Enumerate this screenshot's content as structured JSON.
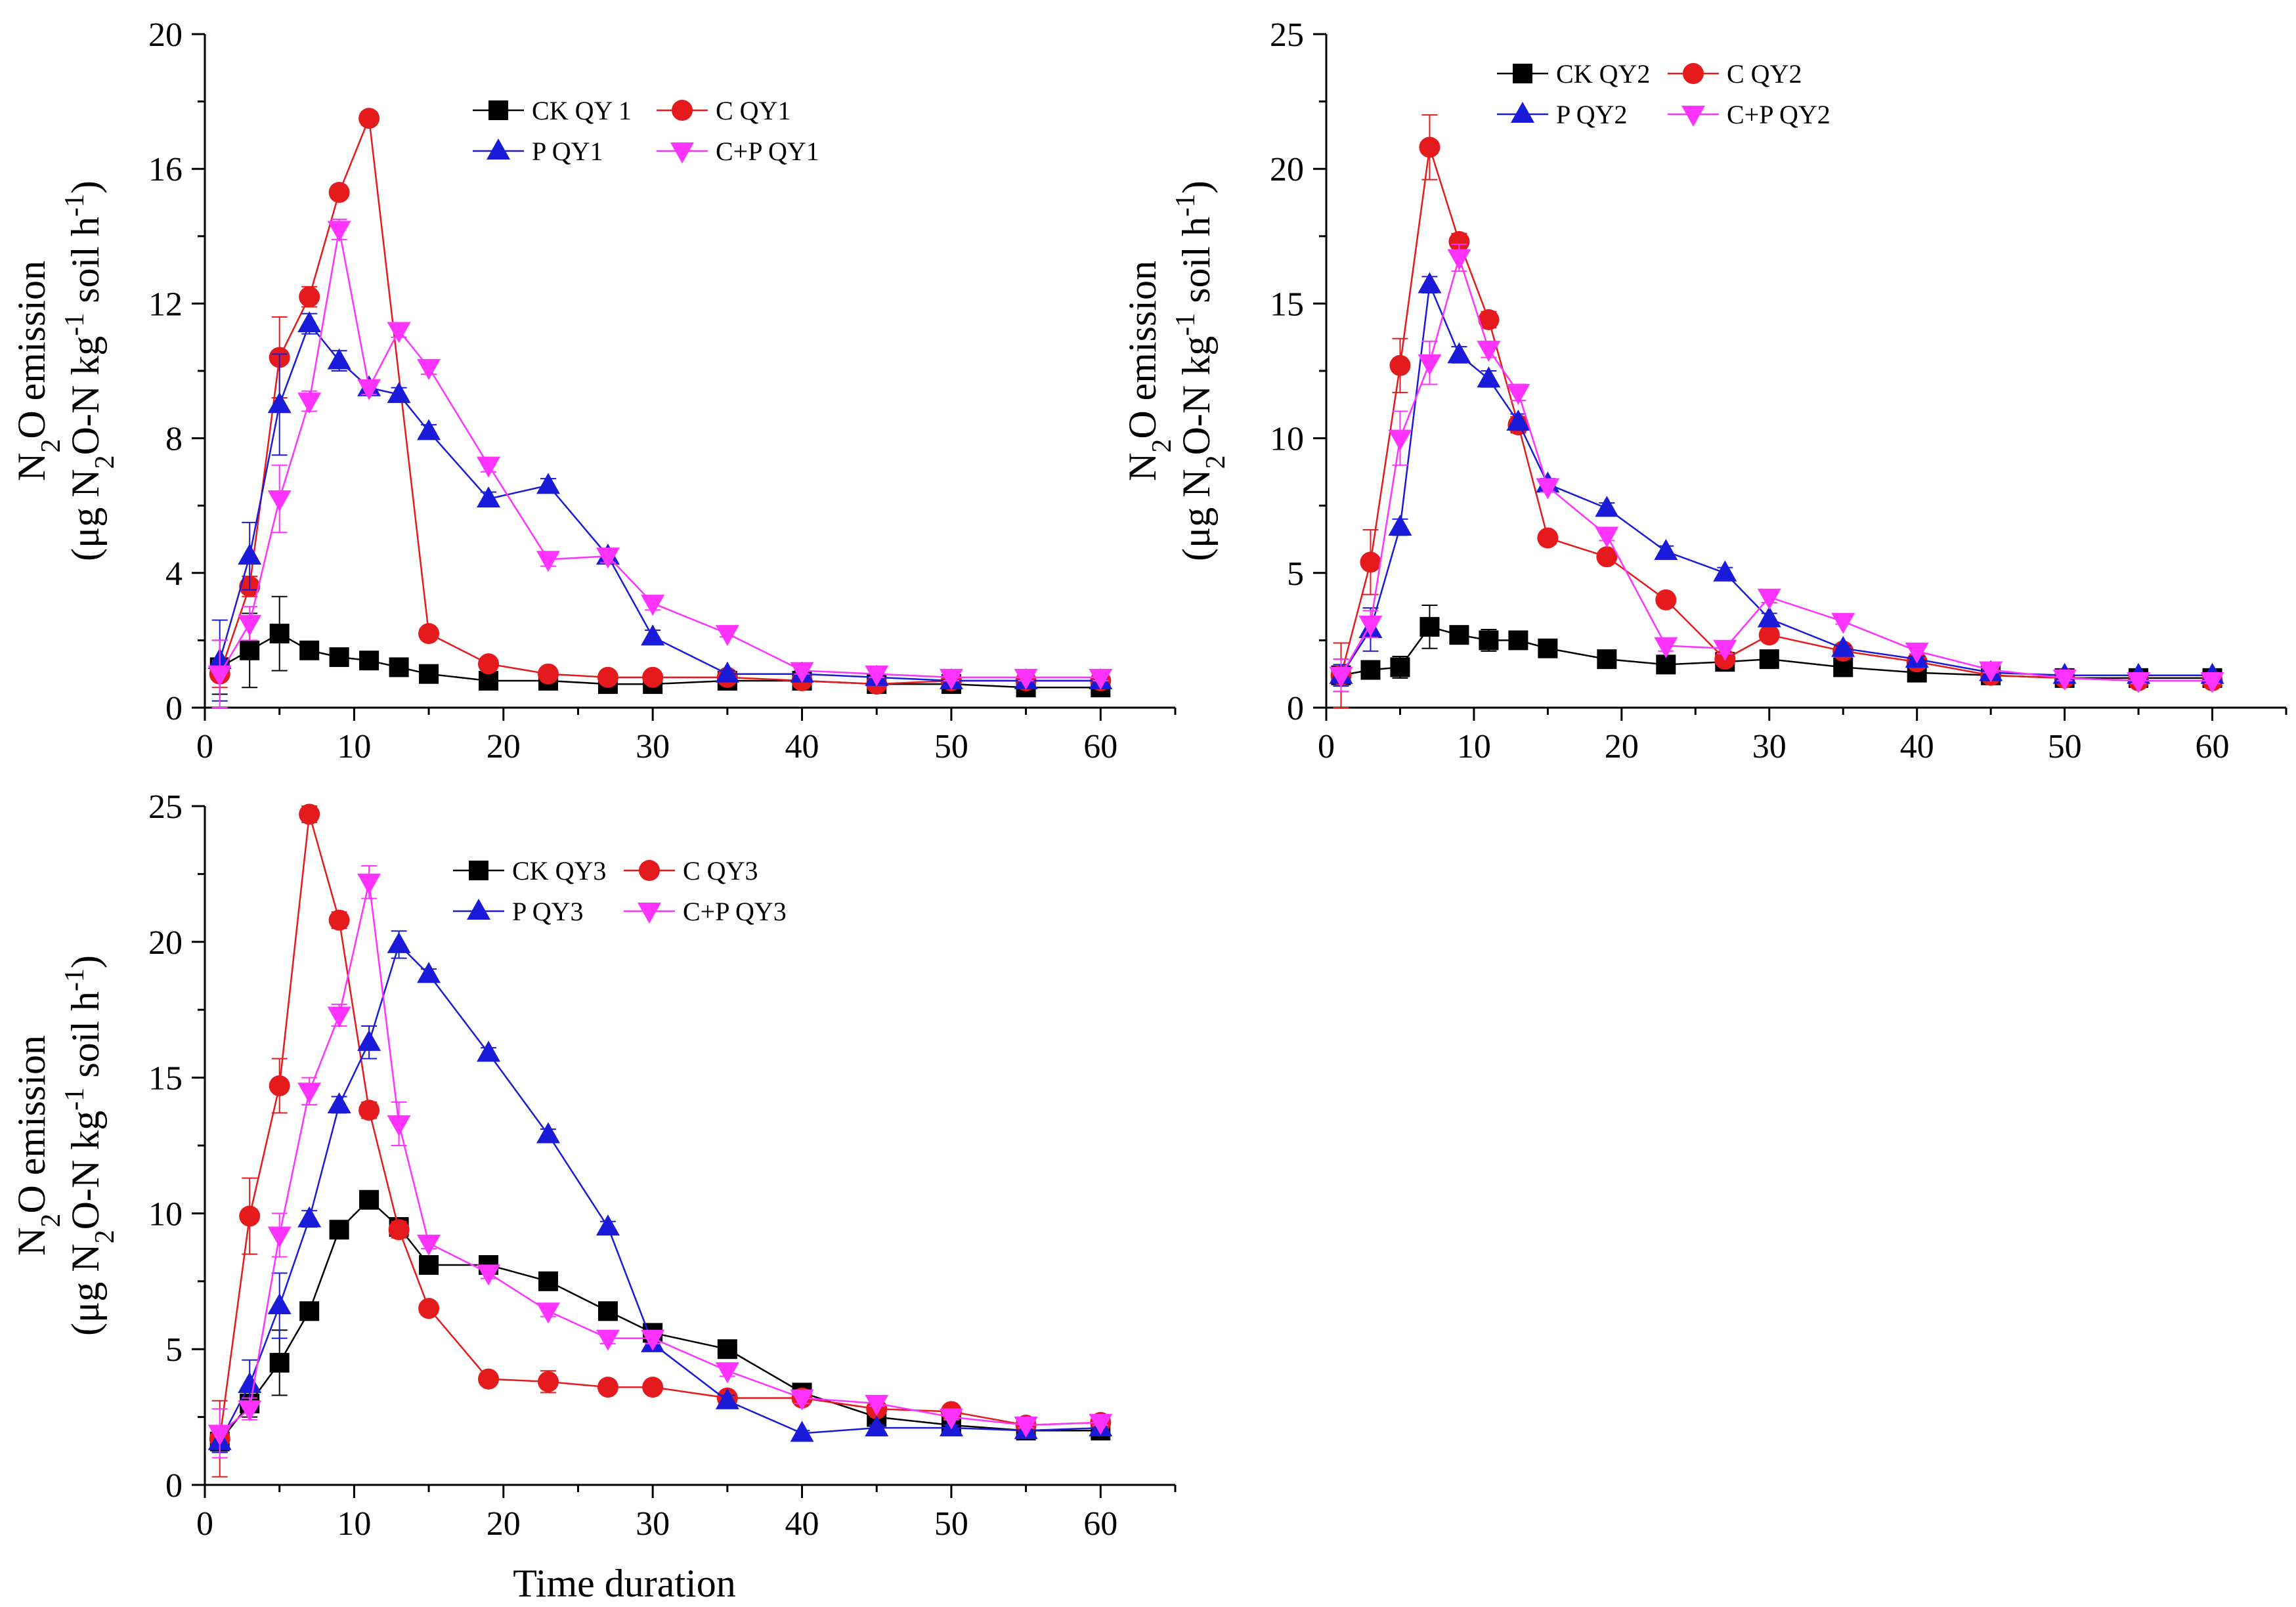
{
  "chart_data": [
    {
      "type": "line",
      "title": "",
      "ylabel_line1": "N2O emission",
      "ylabel_line2": "(μg N2O-N kg-1 soil h-1)",
      "xlabel": "",
      "xlim": [
        0,
        65
      ],
      "ylim": [
        0,
        20
      ],
      "xticks": [
        0,
        10,
        20,
        30,
        40,
        50,
        60
      ],
      "yticks": [
        0,
        4,
        8,
        12,
        16,
        20
      ],
      "legend_position": "top-center",
      "series": [
        {
          "name": "CK QY 1",
          "color": "#000000",
          "marker": "square",
          "x": [
            1,
            3,
            5,
            7,
            9,
            11,
            13,
            15,
            19,
            23,
            27,
            30,
            35,
            40,
            45,
            50,
            55,
            60
          ],
          "y": [
            1.2,
            1.7,
            2.2,
            1.7,
            1.5,
            1.4,
            1.2,
            1.0,
            0.8,
            0.8,
            0.7,
            0.7,
            0.8,
            0.8,
            0.7,
            0.7,
            0.6,
            0.6
          ],
          "err": [
            0.8,
            1.1,
            1.1,
            0.2,
            0.1,
            0.1,
            0.1,
            0.1,
            0.1,
            0.1,
            0.1,
            0.1,
            0.1,
            0.1,
            0.1,
            0.1,
            0.1,
            0.1
          ]
        },
        {
          "name": "C QY1",
          "color": "#e41a1c",
          "marker": "circle",
          "x": [
            1,
            3,
            5,
            7,
            9,
            11,
            15,
            19,
            23,
            27,
            30,
            35,
            40,
            45,
            50,
            55,
            60
          ],
          "y": [
            1.0,
            3.6,
            10.4,
            12.2,
            15.3,
            17.5,
            2.2,
            1.3,
            1.0,
            0.9,
            0.9,
            0.9,
            0.8,
            0.7,
            0.8,
            0.8,
            0.8
          ],
          "err": [
            0.4,
            0.3,
            1.2,
            0.3,
            0.2,
            0.2,
            0.1,
            0.1,
            0.1,
            0.1,
            0.1,
            0.1,
            0.1,
            0.1,
            0.1,
            0.1,
            0.1
          ]
        },
        {
          "name": "P QY1",
          "color": "#1a1ad9",
          "marker": "triangle-up",
          "x": [
            1,
            3,
            5,
            7,
            9,
            11,
            13,
            15,
            19,
            23,
            27,
            30,
            35,
            40,
            45,
            50,
            55,
            60
          ],
          "y": [
            1.4,
            4.5,
            9.0,
            11.4,
            10.3,
            9.5,
            9.3,
            8.2,
            6.2,
            6.6,
            4.5,
            2.1,
            1.0,
            1.0,
            0.9,
            0.8,
            0.8,
            0.8
          ],
          "err": [
            1.2,
            1.0,
            1.5,
            0.3,
            0.3,
            0.2,
            0.2,
            0.2,
            0.2,
            0.2,
            0.2,
            0.2,
            0.1,
            0.1,
            0.1,
            0.1,
            0.1,
            0.1
          ]
        },
        {
          "name": "C+P QY1",
          "color": "#ff33ff",
          "marker": "triangle-down",
          "x": [
            1,
            3,
            5,
            7,
            9,
            11,
            13,
            15,
            19,
            23,
            27,
            30,
            35,
            40,
            45,
            50,
            55,
            60
          ],
          "y": [
            1.0,
            2.5,
            6.2,
            9.1,
            14.2,
            9.5,
            11.2,
            10.1,
            7.2,
            4.4,
            4.5,
            3.1,
            2.2,
            1.1,
            1.0,
            0.9,
            0.9,
            0.9
          ],
          "err": [
            1.0,
            0.5,
            1.0,
            0.3,
            0.3,
            0.2,
            0.2,
            0.2,
            0.2,
            0.2,
            0.2,
            0.2,
            0.1,
            0.1,
            0.1,
            0.1,
            0.1,
            0.1
          ]
        }
      ]
    },
    {
      "type": "line",
      "title": "",
      "ylabel_line1": "N2O emission",
      "ylabel_line2": "(μg N2O-N kg-1 soil h-1)",
      "xlabel": "",
      "xlim": [
        0,
        65
      ],
      "ylim": [
        0,
        25
      ],
      "xticks": [
        0,
        10,
        20,
        30,
        40,
        50,
        60
      ],
      "yticks": [
        0,
        5,
        10,
        15,
        20,
        25
      ],
      "legend_position": "top-right",
      "series": [
        {
          "name": "CK QY2",
          "color": "#000000",
          "marker": "square",
          "x": [
            1,
            3,
            5,
            7,
            9,
            11,
            13,
            15,
            19,
            23,
            27,
            30,
            35,
            40,
            45,
            50,
            55,
            60
          ],
          "y": [
            1.2,
            1.4,
            1.5,
            3.0,
            2.7,
            2.5,
            2.5,
            2.2,
            1.8,
            1.6,
            1.7,
            1.8,
            1.5,
            1.3,
            1.2,
            1.1,
            1.1,
            1.1
          ],
          "err": [
            0.6,
            0.3,
            0.4,
            0.8,
            0.2,
            0.4,
            0.2,
            0.2,
            0.2,
            0.2,
            0.2,
            0.2,
            0.1,
            0.1,
            0.1,
            0.1,
            0.1,
            0.1
          ]
        },
        {
          "name": "C QY2",
          "color": "#e41a1c",
          "marker": "circle",
          "x": [
            1,
            3,
            5,
            7,
            9,
            11,
            13,
            15,
            19,
            23,
            27,
            30,
            35,
            40,
            45,
            50,
            55,
            60
          ],
          "y": [
            1.2,
            5.4,
            12.7,
            20.8,
            17.3,
            14.4,
            10.5,
            6.3,
            5.6,
            4.0,
            1.8,
            2.7,
            2.1,
            1.7,
            1.2,
            1.1,
            1.0,
            1.0
          ],
          "err": [
            1.2,
            1.2,
            1.0,
            1.2,
            0.3,
            0.3,
            0.3,
            0.2,
            0.2,
            0.2,
            0.2,
            0.2,
            0.1,
            0.1,
            0.1,
            0.1,
            0.1,
            0.1
          ]
        },
        {
          "name": "P QY2",
          "color": "#1a1ad9",
          "marker": "triangle-up",
          "x": [
            1,
            3,
            5,
            7,
            9,
            11,
            13,
            15,
            19,
            23,
            27,
            30,
            35,
            40,
            45,
            50,
            55,
            60
          ],
          "y": [
            1.2,
            2.9,
            6.7,
            15.7,
            13.1,
            12.2,
            10.6,
            8.3,
            7.4,
            5.8,
            5.0,
            3.3,
            2.2,
            1.8,
            1.3,
            1.2,
            1.2,
            1.2
          ],
          "err": [
            0.4,
            0.8,
            0.3,
            0.3,
            0.3,
            0.3,
            0.3,
            0.2,
            0.2,
            0.2,
            0.2,
            0.2,
            0.1,
            0.1,
            0.1,
            0.1,
            0.1,
            0.1
          ]
        },
        {
          "name": "C+P QY2",
          "color": "#ff33ff",
          "marker": "triangle-down",
          "x": [
            1,
            3,
            5,
            7,
            9,
            11,
            13,
            15,
            19,
            23,
            27,
            30,
            35,
            40,
            45,
            50,
            55,
            60
          ],
          "y": [
            1.2,
            3.1,
            10.0,
            12.8,
            16.7,
            13.3,
            11.7,
            8.2,
            6.4,
            2.3,
            2.2,
            4.1,
            3.2,
            2.1,
            1.4,
            1.1,
            1.0,
            1.0
          ],
          "err": [
            0.6,
            0.5,
            1.0,
            0.8,
            0.5,
            0.3,
            0.3,
            0.2,
            0.2,
            0.2,
            0.2,
            0.2,
            0.1,
            0.1,
            0.1,
            0.1,
            0.1,
            0.1
          ]
        }
      ]
    },
    {
      "type": "line",
      "title": "",
      "ylabel_line1": "N2O emission",
      "ylabel_line2": "(μg N2O-N kg-1 soil h-1)",
      "xlabel": "Time duration",
      "xlim": [
        0,
        65
      ],
      "ylim": [
        0,
        25
      ],
      "xticks": [
        0,
        10,
        20,
        30,
        40,
        50,
        60
      ],
      "yticks": [
        0,
        5,
        10,
        15,
        20,
        25
      ],
      "legend_position": "top-center",
      "series": [
        {
          "name": "CK QY3",
          "color": "#000000",
          "marker": "square",
          "x": [
            1,
            3,
            5,
            7,
            9,
            11,
            13,
            15,
            19,
            23,
            27,
            30,
            35,
            40,
            45,
            50,
            55,
            60
          ],
          "y": [
            1.6,
            3.0,
            4.5,
            6.4,
            9.4,
            10.5,
            9.5,
            8.1,
            8.1,
            7.5,
            6.4,
            5.6,
            5.0,
            3.4,
            2.5,
            2.2,
            2.0,
            2.0
          ],
          "err": [
            0.4,
            0.5,
            1.2,
            0.3,
            0.3,
            0.3,
            0.3,
            0.2,
            0.2,
            0.2,
            0.2,
            0.2,
            0.2,
            0.2,
            0.2,
            0.1,
            0.1,
            0.1
          ]
        },
        {
          "name": "C QY3",
          "color": "#e41a1c",
          "marker": "circle",
          "x": [
            1,
            3,
            5,
            7,
            9,
            11,
            13,
            15,
            19,
            23,
            27,
            30,
            35,
            40,
            45,
            50,
            55,
            60
          ],
          "y": [
            1.7,
            9.9,
            14.7,
            24.7,
            20.8,
            13.8,
            9.4,
            6.5,
            3.9,
            3.8,
            3.6,
            3.6,
            3.2,
            3.2,
            2.8,
            2.7,
            2.2,
            2.3
          ],
          "err": [
            1.4,
            1.4,
            1.0,
            0.3,
            0.3,
            0.3,
            0.3,
            0.2,
            0.2,
            0.4,
            0.2,
            0.2,
            0.2,
            0.2,
            0.2,
            0.1,
            0.1,
            0.1
          ]
        },
        {
          "name": "P QY3",
          "color": "#1a1ad9",
          "marker": "triangle-up",
          "x": [
            1,
            3,
            5,
            7,
            9,
            11,
            13,
            15,
            19,
            23,
            27,
            30,
            35,
            40,
            45,
            50,
            55,
            60
          ],
          "y": [
            1.6,
            3.7,
            6.6,
            9.8,
            14.0,
            16.3,
            19.9,
            18.8,
            15.9,
            12.9,
            9.5,
            5.2,
            3.1,
            1.9,
            2.1,
            2.1,
            2.0,
            2.1
          ],
          "err": [
            0.4,
            0.9,
            1.2,
            0.3,
            0.3,
            0.6,
            0.5,
            0.2,
            0.2,
            0.2,
            0.2,
            0.2,
            0.2,
            0.1,
            0.1,
            0.1,
            0.1,
            0.1
          ]
        },
        {
          "name": "C+P QY3",
          "color": "#ff33ff",
          "marker": "triangle-down",
          "x": [
            1,
            3,
            5,
            7,
            9,
            11,
            13,
            15,
            19,
            23,
            27,
            30,
            35,
            40,
            45,
            50,
            55,
            60
          ],
          "y": [
            1.9,
            2.8,
            9.2,
            14.5,
            17.3,
            22.2,
            13.3,
            8.9,
            7.8,
            6.4,
            5.4,
            5.4,
            4.2,
            3.2,
            3.0,
            2.5,
            2.2,
            2.3
          ],
          "err": [
            0.9,
            0.4,
            0.8,
            0.5,
            0.4,
            0.6,
            0.8,
            0.2,
            0.2,
            0.2,
            0.2,
            0.2,
            0.2,
            0.2,
            0.1,
            0.1,
            0.1,
            0.1
          ]
        }
      ]
    }
  ]
}
